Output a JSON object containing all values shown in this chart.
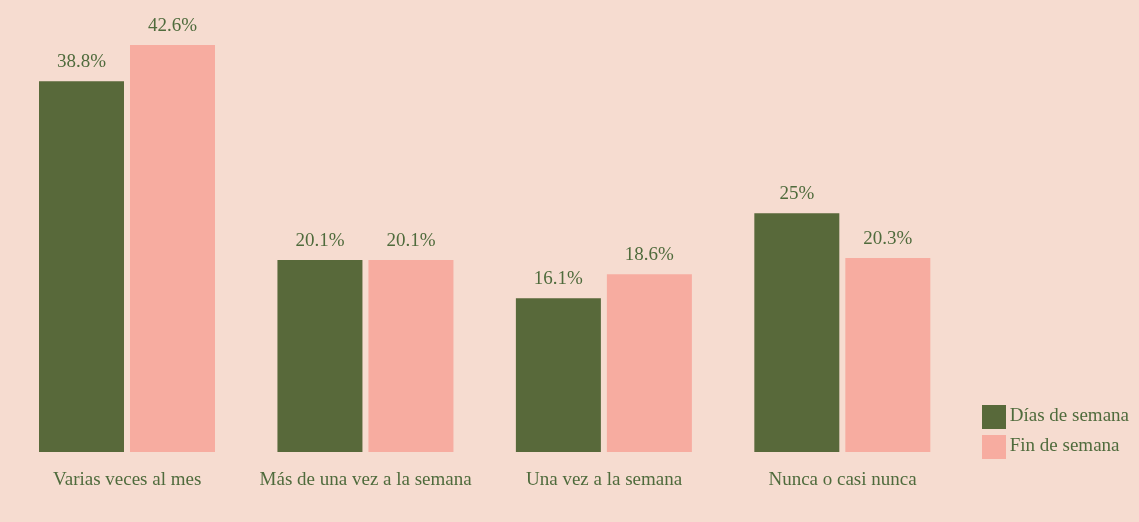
{
  "chart_data": {
    "type": "bar",
    "categories": [
      "Varias veces al mes",
      "Más de una vez a la semana",
      "Una vez a la semana",
      "Nunca o casi nunca"
    ],
    "series": [
      {
        "name": "Días de semana",
        "color": "#58693a",
        "values": [
          38.8,
          20.1,
          16.1,
          25
        ],
        "value_labels": [
          "38.8%",
          "20.1%",
          "16.1%",
          "25%"
        ]
      },
      {
        "name": "Fin de semana",
        "color": "#f7aca0",
        "values": [
          42.6,
          20.1,
          18.6,
          20.3
        ],
        "value_labels": [
          "42.6%",
          "20.1%",
          "18.6%",
          "20.3%"
        ]
      }
    ],
    "legend": "bottom right",
    "grid": false,
    "tick_labels": "x"
  }
}
